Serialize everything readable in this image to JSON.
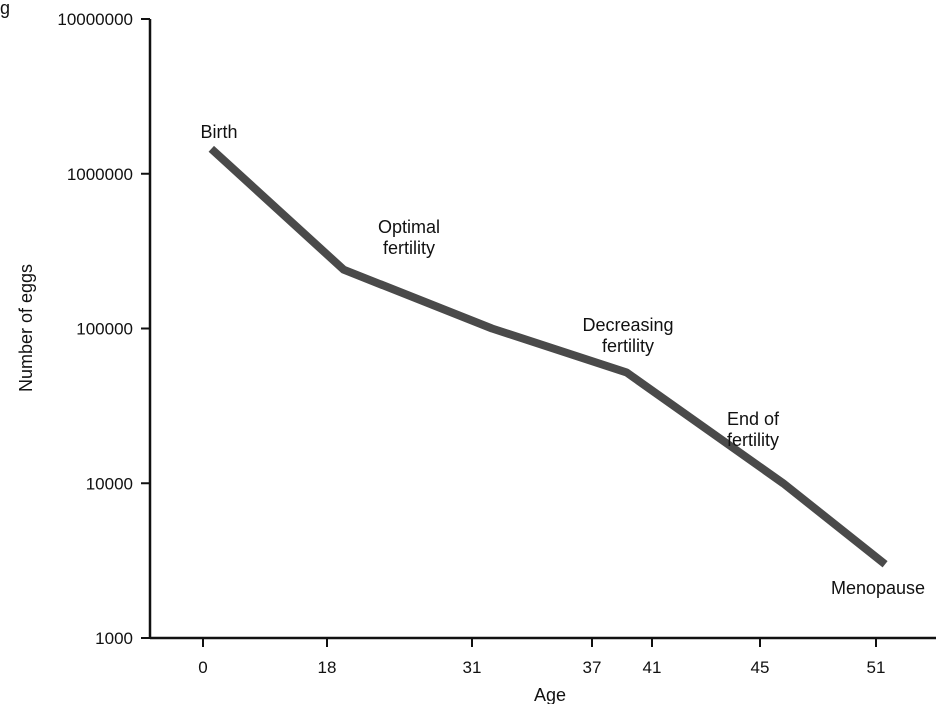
{
  "chart_data": {
    "type": "line",
    "corner_text": "g",
    "ylabel": "Number of eggs",
    "xlabel": "Age",
    "y_scale": "log",
    "ylim": [
      1000,
      10000000
    ],
    "y_ticks": [
      "10000000",
      "1000000",
      "100000",
      "10000",
      "1000"
    ],
    "x_ticks": [
      "0",
      "18",
      "31",
      "37",
      "41",
      "45",
      "51"
    ],
    "grid": false,
    "series_color": "#4a4a4a",
    "series": [
      {
        "x": [
          1.2,
          19.5,
          32.0,
          39.3,
          46.2,
          52.3
        ],
        "y": [
          1450000,
          240000,
          100000,
          52000,
          10000,
          3000
        ]
      }
    ],
    "annotations": [
      {
        "lines": [
          "Birth"
        ]
      },
      {
        "lines": [
          "Optimal",
          "fertility"
        ]
      },
      {
        "lines": [
          "Decreasing",
          "fertility"
        ]
      },
      {
        "lines": [
          "End of",
          "fertility"
        ]
      },
      {
        "lines": [
          "Menopause"
        ]
      }
    ]
  }
}
